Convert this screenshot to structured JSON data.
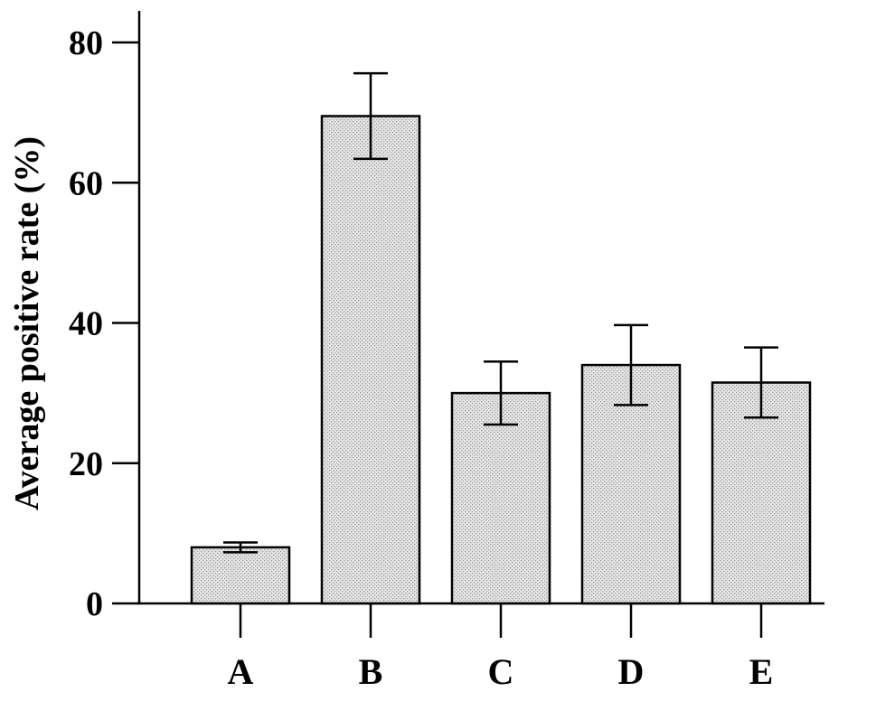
{
  "chart_data": {
    "type": "bar",
    "title": "",
    "xlabel": "",
    "ylabel": "Average positive rate (%)",
    "categories": [
      "A",
      "B",
      "C",
      "D",
      "E"
    ],
    "values": [
      8,
      69.5,
      30,
      34,
      31.5
    ],
    "errors": [
      0.7,
      6.1,
      4.5,
      5.7,
      5.0
    ],
    "ylim": [
      0,
      80
    ],
    "yticks": [
      0,
      20,
      40,
      60,
      80
    ],
    "grid": false,
    "legend": "none",
    "bar_fill": "#d9d9d9",
    "bar_stroke": "#000000"
  }
}
